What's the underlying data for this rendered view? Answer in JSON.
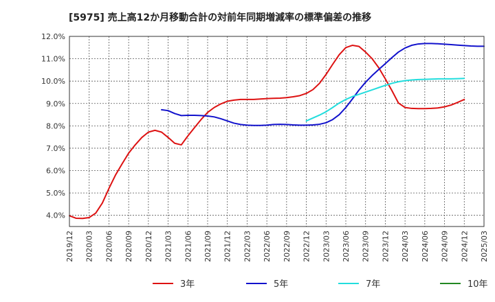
{
  "title": "[5975]  売上高12か月移動合計の対前年同期増減率の標準偏差の推移",
  "chart_data": {
    "type": "line",
    "title": "[5975]  売上高12か月移動合計の対前年同期増減率の標準偏差の推移",
    "ylim": [
      3.5,
      12.0
    ],
    "y_ticks": [
      "4.0%",
      "5.0%",
      "6.0%",
      "7.0%",
      "8.0%",
      "9.0%",
      "10.0%",
      "11.0%",
      "12.0%"
    ],
    "y_tick_values": [
      4,
      5,
      6,
      7,
      8,
      9,
      10,
      11,
      12
    ],
    "x_ticks": [
      "2019/12",
      "2020/03",
      "2020/06",
      "2020/09",
      "2020/12",
      "2021/03",
      "2021/06",
      "2021/09",
      "2021/12",
      "2022/03",
      "2022/06",
      "2022/09",
      "2022/12",
      "2023/03",
      "2023/06",
      "2023/09",
      "2023/12",
      "2024/03",
      "2024/06",
      "2024/09",
      "2024/12",
      "2025/03"
    ],
    "grid": true,
    "legend_position": "bottom",
    "series": [
      {
        "name": "3年",
        "color": "#dd1111",
        "start": "2019/12",
        "values": [
          3.98,
          3.87,
          3.86,
          3.9,
          4.1,
          4.55,
          5.2,
          5.8,
          6.3,
          6.78,
          7.15,
          7.48,
          7.72,
          7.8,
          7.72,
          7.48,
          7.22,
          7.15,
          7.55,
          7.92,
          8.28,
          8.6,
          8.82,
          8.98,
          9.1,
          9.15,
          9.18,
          9.18,
          9.18,
          9.2,
          9.22,
          9.23,
          9.24,
          9.26,
          9.3,
          9.35,
          9.45,
          9.62,
          9.9,
          10.3,
          10.75,
          11.18,
          11.5,
          11.6,
          11.55,
          11.3,
          11.0,
          10.6,
          10.1,
          9.58,
          9.02,
          8.82,
          8.78,
          8.77,
          8.77,
          8.78,
          8.8,
          8.85,
          8.93,
          9.05,
          9.18
        ]
      },
      {
        "name": "5年",
        "color": "#1111cc",
        "start": "2021/02",
        "values": [
          8.72,
          8.68,
          8.55,
          8.46,
          8.47,
          8.47,
          8.46,
          8.44,
          8.4,
          8.32,
          8.22,
          8.12,
          8.06,
          8.03,
          8.02,
          8.02,
          8.03,
          8.06,
          8.07,
          8.06,
          8.04,
          8.03,
          8.03,
          8.04,
          8.07,
          8.14,
          8.28,
          8.5,
          8.82,
          9.2,
          9.6,
          9.95,
          10.25,
          10.52,
          10.78,
          11.05,
          11.3,
          11.48,
          11.6,
          11.66,
          11.68,
          11.68,
          11.67,
          11.65,
          11.63,
          11.61,
          11.59,
          11.57,
          11.56,
          11.56
        ]
      },
      {
        "name": "7年",
        "color": "#22dddd",
        "start": "2022/12",
        "values": [
          8.22,
          8.35,
          8.48,
          8.63,
          8.82,
          9.02,
          9.18,
          9.31,
          9.41,
          9.51,
          9.61,
          9.71,
          9.81,
          9.9,
          9.97,
          10.02,
          10.05,
          10.07,
          10.08,
          10.09,
          10.1,
          10.1,
          10.1,
          10.11,
          10.12
        ]
      },
      {
        "name": "10年",
        "color": "#228822",
        "start": "2019/12",
        "values": []
      }
    ]
  }
}
